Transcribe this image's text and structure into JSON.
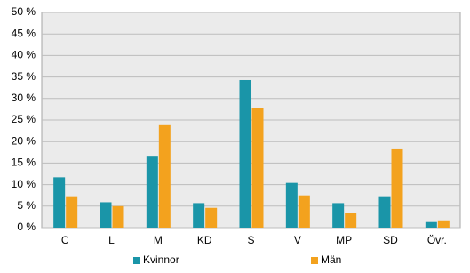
{
  "chart_data": {
    "type": "bar",
    "categories": [
      "C",
      "L",
      "M",
      "KD",
      "S",
      "V",
      "MP",
      "SD",
      "Övr."
    ],
    "series": [
      {
        "name": "Kvinnor",
        "color": "#1a95a8",
        "values": [
          11.7,
          5.9,
          16.7,
          5.7,
          34.3,
          10.4,
          5.7,
          7.3,
          1.3
        ]
      },
      {
        "name": "Män",
        "color": "#f3a21e",
        "values": [
          7.3,
          5.0,
          23.8,
          4.6,
          27.7,
          7.5,
          3.4,
          18.4,
          1.7
        ]
      }
    ],
    "ylim": [
      0,
      50
    ],
    "yticks": [
      {
        "value": 0,
        "label": "0 %"
      },
      {
        "value": 5,
        "label": "5 %"
      },
      {
        "value": 10,
        "label": "10 %"
      },
      {
        "value": 15,
        "label": "15 %"
      },
      {
        "value": 20,
        "label": "20 %"
      },
      {
        "value": 25,
        "label": "25 %"
      },
      {
        "value": 30,
        "label": "30 %"
      },
      {
        "value": 35,
        "label": "35 %"
      },
      {
        "value": 40,
        "label": "40 %"
      },
      {
        "value": 45,
        "label": "45 %"
      },
      {
        "value": 50,
        "label": "50 %"
      }
    ],
    "grid": true,
    "legend": "bottom"
  }
}
